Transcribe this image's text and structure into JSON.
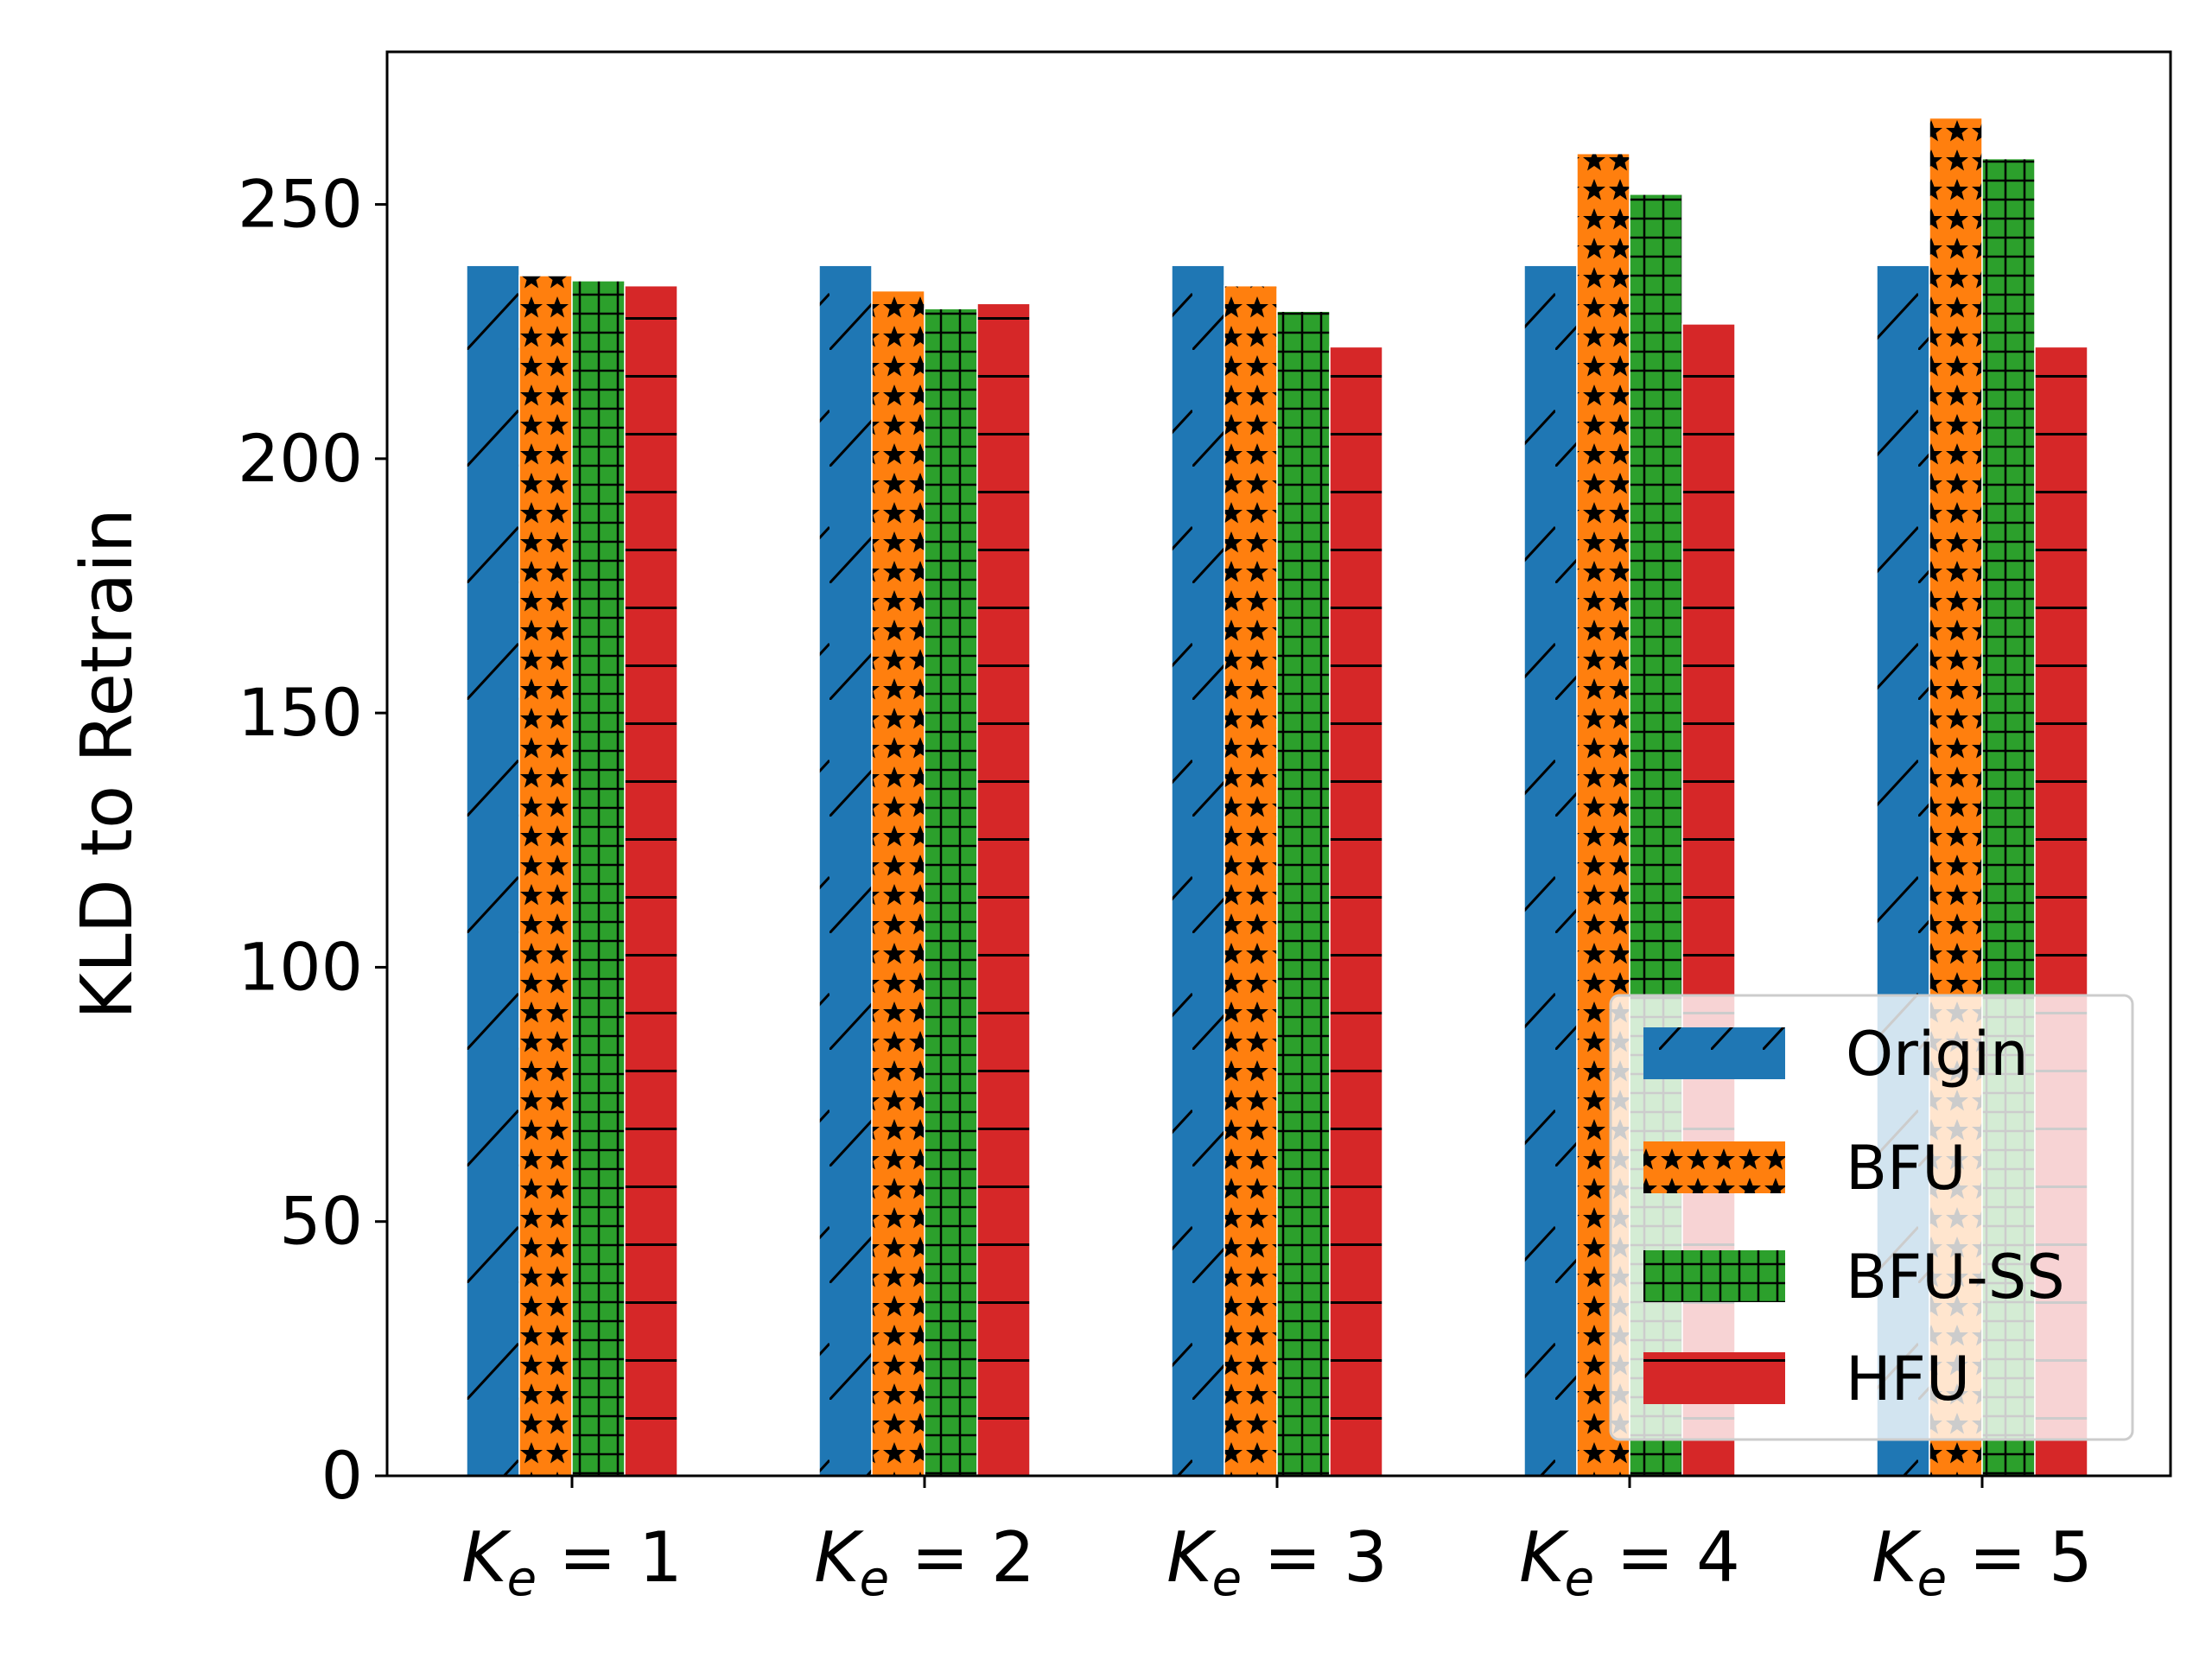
{
  "chart_data": {
    "type": "bar",
    "categories": [
      "K_e = 1",
      "K_e = 2",
      "K_e = 3",
      "K_e = 4",
      "K_e = 5"
    ],
    "category_parts": [
      {
        "symbol": "K",
        "subscript": "e",
        "rest": " = 1"
      },
      {
        "symbol": "K",
        "subscript": "e",
        "rest": " = 2"
      },
      {
        "symbol": "K",
        "subscript": "e",
        "rest": " = 3"
      },
      {
        "symbol": "K",
        "subscript": "e",
        "rest": " = 4"
      },
      {
        "symbol": "K",
        "subscript": "e",
        "rest": " = 5"
      }
    ],
    "series": [
      {
        "name": "Origin",
        "color": "#1f77b4",
        "hatch": "diagonal",
        "values": [
          238,
          238,
          238,
          238,
          238
        ]
      },
      {
        "name": "BFU",
        "color": "#ff7f0e",
        "hatch": "stars",
        "values": [
          236,
          233,
          234,
          260,
          267
        ]
      },
      {
        "name": "BFU-SS",
        "color": "#2ca02c",
        "hatch": "grid",
        "values": [
          235,
          229.5,
          229,
          252,
          259
        ]
      },
      {
        "name": "HFU",
        "color": "#d62728",
        "hatch": "horizontal",
        "values": [
          234,
          230.5,
          222,
          226.5,
          222
        ]
      }
    ],
    "title": "",
    "xlabel": "",
    "ylabel": "KLD to Retrain",
    "ylim": [
      0,
      280
    ],
    "yticks": [
      0,
      50,
      100,
      150,
      200,
      250
    ],
    "grid": false,
    "legend_position": "lower-right"
  }
}
